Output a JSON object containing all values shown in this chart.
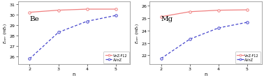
{
  "Be": {
    "n": [
      2,
      3,
      4,
      5
    ],
    "VnZ_F12": [
      30.2,
      30.4,
      30.5,
      30.5
    ],
    "AVnZ": [
      25.8,
      28.3,
      29.35,
      29.9
    ],
    "ylim": [
      25.3,
      31.2
    ],
    "yticks": [
      26,
      27,
      28,
      29,
      30,
      31
    ],
    "label": "Be"
  },
  "Mg": {
    "n": [
      2,
      3,
      4,
      5
    ],
    "VnZ_F12": [
      25.1,
      25.5,
      25.62,
      25.65
    ],
    "AVnZ": [
      21.75,
      23.3,
      24.2,
      24.65
    ],
    "ylim": [
      21.3,
      26.3
    ],
    "yticks": [
      22,
      23,
      24,
      25,
      26
    ],
    "label": "Mg"
  },
  "color_solid": "#f08080",
  "color_dashed": "#4444cc",
  "xlabel": "n",
  "legend_solid": "VnZ-F12",
  "legend_dashed": "AVnZ",
  "bg_color": "#ffffff"
}
